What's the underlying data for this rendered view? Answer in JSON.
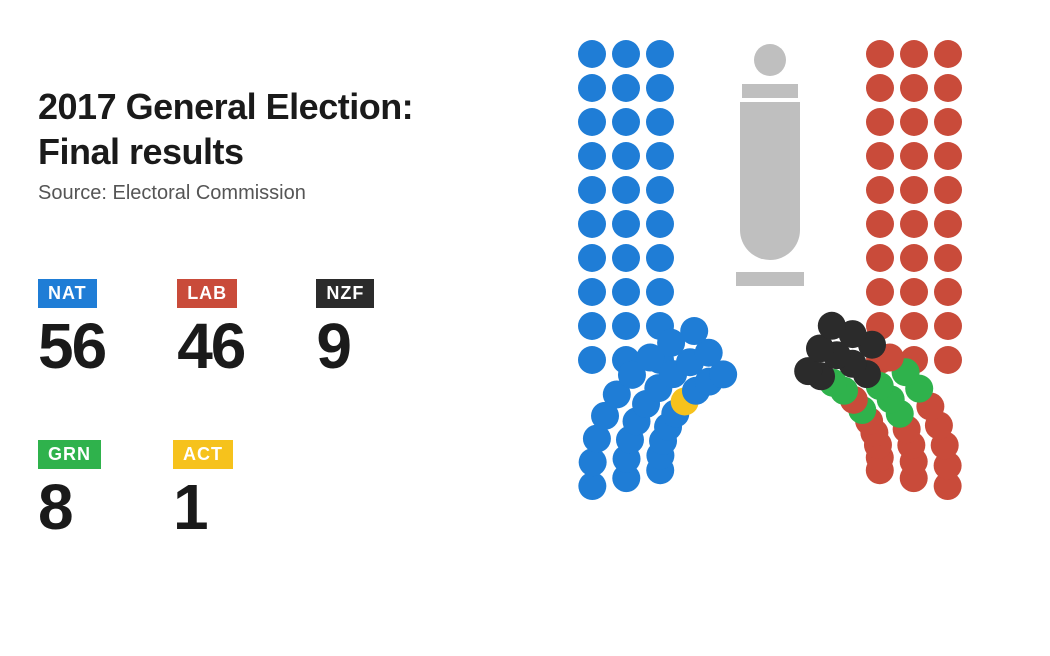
{
  "infographic": {
    "type": "parliament-seat-chart",
    "title_line1": "2017 General Election:",
    "title_line2": "Final results",
    "source_label": "Source: Electoral Commission",
    "title_fontsize": 36,
    "title_color": "#1a1a1a",
    "source_fontsize": 20,
    "source_color": "#555555",
    "seats_fontsize": 64,
    "badge_fontsize": 18,
    "background_color": "#ffffff"
  },
  "parties": [
    {
      "code": "NAT",
      "seats": 56,
      "color": "#1f7dd6"
    },
    {
      "code": "LAB",
      "seats": 46,
      "color": "#c94b3a"
    },
    {
      "code": "NZF",
      "seats": 9,
      "color": "#2b2b2b"
    },
    {
      "code": "GRN",
      "seats": 8,
      "color": "#2fb24c"
    },
    {
      "code": "ACT",
      "seats": 1,
      "color": "#f6c21c"
    }
  ],
  "chamber": {
    "dot_radius": 14,
    "neutral_color": "#bfbfbf",
    "svg_viewbox": "0 0 540 600",
    "layout_note": "Left wing = NAT (blue) + ACT (yellow, 1 seat at innermost bottom). Right wing = LAB (red) + GRN (green, 8 seats inner bottom) + NZF (black, 9 seats bottom rows). Central grey shape = speaker / mace.",
    "left_wing_order": [
      "NAT",
      "NAT",
      "NAT",
      "NAT",
      "NAT",
      "NAT",
      "NAT",
      "NAT",
      "NAT",
      "NAT",
      "NAT",
      "NAT",
      "NAT",
      "NAT",
      "NAT",
      "NAT",
      "NAT",
      "NAT",
      "NAT",
      "NAT",
      "NAT",
      "NAT",
      "NAT",
      "NAT",
      "NAT",
      "NAT",
      "NAT",
      "NAT",
      "NAT",
      "NAT",
      "NAT",
      "NAT",
      "NAT",
      "NAT",
      "NAT",
      "NAT",
      "NAT",
      "NAT",
      "NAT",
      "NAT",
      "NAT",
      "NAT",
      "NAT",
      "NAT",
      "NAT",
      "ACT",
      "NAT",
      "NAT",
      "NAT",
      "NAT",
      "NAT",
      "NAT",
      "NAT",
      "NAT",
      "NAT",
      "NAT",
      "NAT"
    ],
    "right_wing_order": [
      "LAB",
      "LAB",
      "LAB",
      "LAB",
      "LAB",
      "LAB",
      "LAB",
      "LAB",
      "LAB",
      "LAB",
      "LAB",
      "LAB",
      "LAB",
      "LAB",
      "LAB",
      "LAB",
      "LAB",
      "LAB",
      "LAB",
      "LAB",
      "LAB",
      "LAB",
      "LAB",
      "LAB",
      "LAB",
      "LAB",
      "LAB",
      "LAB",
      "LAB",
      "LAB",
      "LAB",
      "LAB",
      "LAB",
      "LAB",
      "LAB",
      "LAB",
      "LAB",
      "LAB",
      "LAB",
      "LAB",
      "LAB",
      "LAB",
      "LAB",
      "GRN",
      "LAB",
      "GRN",
      "GRN",
      "GRN",
      "LAB",
      "GRN",
      "GRN",
      "GRN",
      "NZF",
      "LAB",
      "GRN",
      "NZF",
      "NZF",
      "NZF",
      "NZF",
      "NZF",
      "NZF",
      "NZF",
      "NZF"
    ]
  }
}
